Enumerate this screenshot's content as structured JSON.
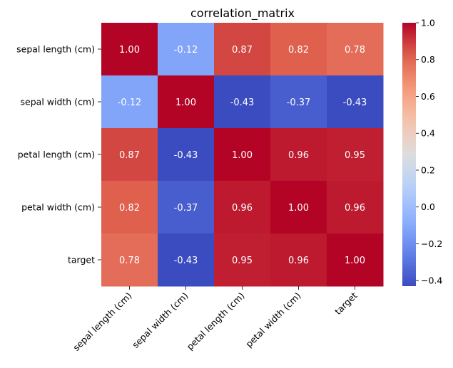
{
  "chart_data": {
    "type": "heatmap",
    "title": "correlation_matrix",
    "row_labels": [
      "sepal length (cm)",
      "sepal width (cm)",
      "petal length (cm)",
      "petal width (cm)",
      "target"
    ],
    "col_labels": [
      "sepal length (cm)",
      "sepal width (cm)",
      "petal length (cm)",
      "petal width (cm)",
      "target"
    ],
    "values": [
      [
        1.0,
        -0.12,
        0.87,
        0.82,
        0.78
      ],
      [
        -0.12,
        1.0,
        -0.43,
        -0.37,
        -0.43
      ],
      [
        0.87,
        -0.43,
        1.0,
        0.96,
        0.95
      ],
      [
        0.82,
        -0.37,
        0.96,
        1.0,
        0.96
      ],
      [
        0.78,
        -0.43,
        0.95,
        0.96,
        1.0
      ]
    ],
    "cell_labels": [
      [
        "1.00",
        "-0.12",
        "0.87",
        "0.82",
        "0.78"
      ],
      [
        "-0.12",
        "1.00",
        "-0.43",
        "-0.37",
        "-0.43"
      ],
      [
        "0.87",
        "-0.43",
        "1.00",
        "0.96",
        "0.95"
      ],
      [
        "0.82",
        "-0.37",
        "0.96",
        "1.00",
        "0.96"
      ],
      [
        "0.78",
        "-0.43",
        "0.95",
        "0.96",
        "1.00"
      ]
    ],
    "colormap": "coolwarm",
    "vmin": -0.43,
    "vmax": 1.0,
    "colorbar_ticks": [
      "1.0",
      "0.8",
      "0.6",
      "0.4",
      "0.2",
      "0.0",
      "−0.2",
      "−0.4"
    ],
    "colorbar_tick_values": [
      1.0,
      0.8,
      0.6,
      0.4,
      0.2,
      0.0,
      -0.2,
      -0.4
    ],
    "grid": false,
    "legend": "colorbar-right"
  }
}
